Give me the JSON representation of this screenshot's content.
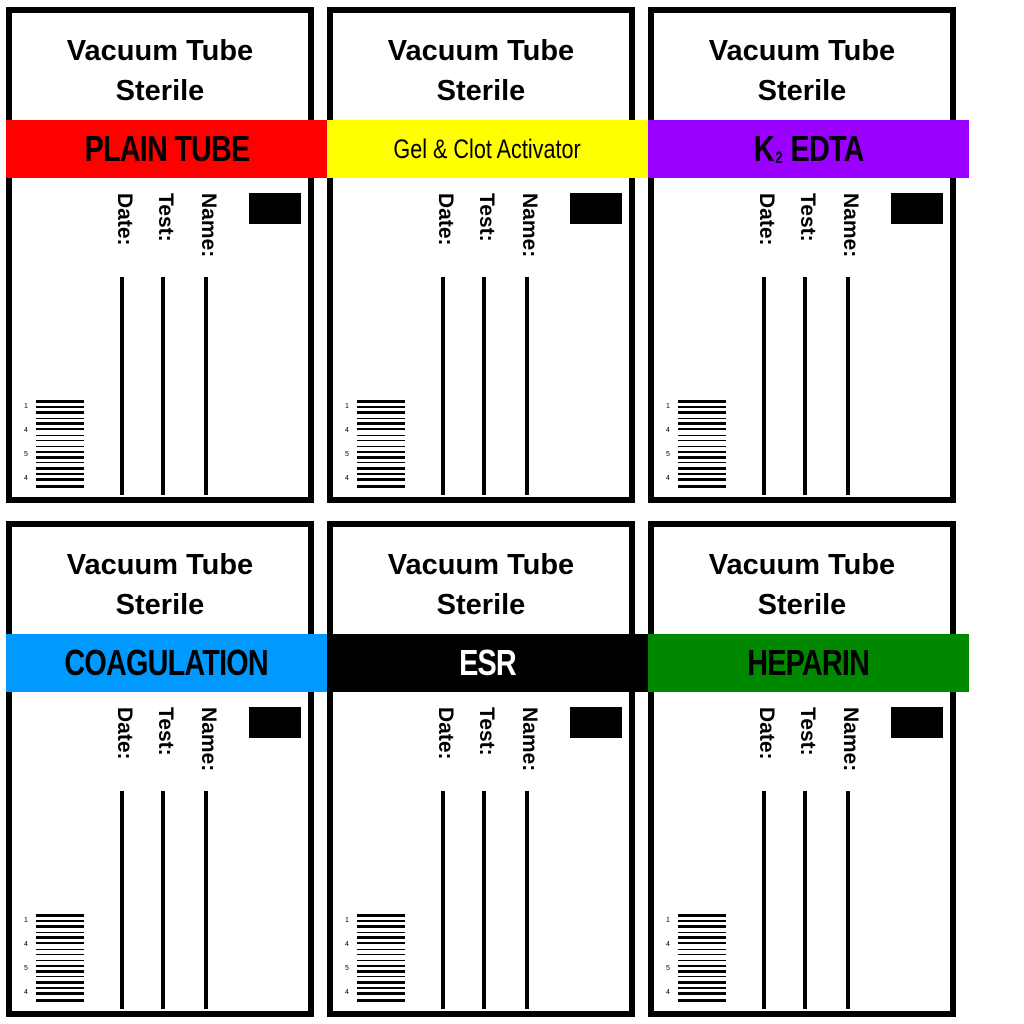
{
  "labels": [
    {
      "header_line1": "Vacuum Tube",
      "header_line2": "Sterile",
      "band_text": "PLAIN TUBE",
      "band_color": "#ff0000",
      "band_text_color": "#000000",
      "fields": {
        "name": "Name:",
        "test": "Test:",
        "date": "Date:"
      }
    },
    {
      "header_line1": "Vacuum Tube",
      "header_line2": "Sterile",
      "band_text": "Gel & Clot Activator",
      "band_color": "#ffff00",
      "band_text_color": "#000000",
      "fields": {
        "name": "Name:",
        "test": "Test:",
        "date": "Date:"
      }
    },
    {
      "header_line1": "Vacuum Tube",
      "header_line2": "Sterile",
      "band_text_main": "K",
      "band_text_sub": "2",
      "band_text_rest": "EDTA",
      "band_color": "#9900ff",
      "band_text_color": "#000000",
      "fields": {
        "name": "Name:",
        "test": "Test:",
        "date": "Date:"
      }
    },
    {
      "header_line1": "Vacuum Tube",
      "header_line2": "Sterile",
      "band_text": "COAGULATION",
      "band_color": "#0099ff",
      "band_text_color": "#000000",
      "fields": {
        "name": "Name:",
        "test": "Test:",
        "date": "Date:"
      }
    },
    {
      "header_line1": "Vacuum Tube",
      "header_line2": "Sterile",
      "band_text": "ESR",
      "band_color": "#000000",
      "band_text_color": "#ffffff",
      "fields": {
        "name": "Name:",
        "test": "Test:",
        "date": "Date:"
      }
    },
    {
      "header_line1": "Vacuum Tube",
      "header_line2": "Sterile",
      "band_text": "HEPARIN",
      "band_color": "#008800",
      "band_text_color": "#000000",
      "fields": {
        "name": "Name:",
        "test": "Test:",
        "date": "Date:"
      }
    }
  ],
  "barcode_digits": [
    "1",
    "4",
    "5",
    "4"
  ]
}
